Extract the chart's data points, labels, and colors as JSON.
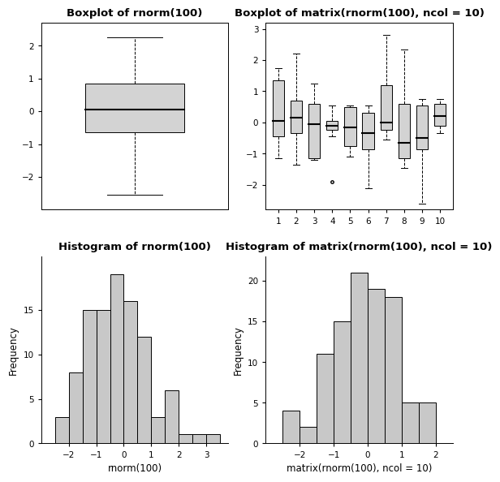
{
  "title_boxplot1": "Boxplot of rnorm(100)",
  "title_boxplot2": "Boxplot of matrix(rnorm(100), ncol = 10)",
  "title_hist1": "Histogram of rnorm(100)",
  "title_hist2": "Histogram of matrix(rnorm(100), ncol = 10)",
  "xlabel_hist1": "rnorm(100)",
  "xlabel_hist2": "matrix(rnorm(100), ncol = 10)",
  "ylabel_hist": "Frequency",
  "box1": {
    "median": 0.05,
    "q1": -0.65,
    "q3": 0.85,
    "whisker_low": -2.55,
    "whisker_high": 2.25,
    "fliers": []
  },
  "box_matrix": [
    {
      "median": 0.05,
      "q1": -0.45,
      "q3": 1.35,
      "whisker_low": -1.15,
      "whisker_high": 1.75,
      "fliers": []
    },
    {
      "median": 0.15,
      "q1": -0.35,
      "q3": 0.7,
      "whisker_low": -1.35,
      "whisker_high": 2.2,
      "fliers": []
    },
    {
      "median": -0.05,
      "q1": -1.15,
      "q3": 0.6,
      "whisker_low": -1.2,
      "whisker_high": 1.25,
      "fliers": []
    },
    {
      "median": -0.1,
      "q1": -0.25,
      "q3": 0.05,
      "whisker_low": -0.45,
      "whisker_high": 0.55,
      "fliers": [
        -1.9
      ]
    },
    {
      "median": -0.15,
      "q1": -0.75,
      "q3": 0.5,
      "whisker_low": -1.1,
      "whisker_high": 0.55,
      "fliers": []
    },
    {
      "median": -0.35,
      "q1": -0.85,
      "q3": 0.3,
      "whisker_low": -2.1,
      "whisker_high": 0.55,
      "fliers": []
    },
    {
      "median": 0.0,
      "q1": -0.25,
      "q3": 1.2,
      "whisker_low": -0.55,
      "whisker_high": 2.8,
      "fliers": []
    },
    {
      "median": -0.65,
      "q1": -1.15,
      "q3": 0.6,
      "whisker_low": -1.45,
      "whisker_high": 2.35,
      "fliers": []
    },
    {
      "median": -0.5,
      "q1": -0.85,
      "q3": 0.55,
      "whisker_low": -2.6,
      "whisker_high": 0.75,
      "fliers": []
    },
    {
      "median": 0.2,
      "q1": -0.1,
      "q3": 0.6,
      "whisker_low": -0.35,
      "whisker_high": 0.75,
      "fliers": []
    }
  ],
  "hist1_bins": [
    -2.5,
    -2.0,
    -1.5,
    -1.0,
    -0.5,
    0.0,
    0.5,
    1.0,
    1.5,
    2.0,
    2.5,
    3.0,
    3.5
  ],
  "hist1_counts": [
    3,
    8,
    15,
    15,
    19,
    16,
    12,
    3,
    6,
    1,
    1,
    1
  ],
  "hist2_bins": [
    -2.5,
    -2.0,
    -1.5,
    -1.0,
    -0.5,
    0.0,
    0.5,
    1.0,
    1.5,
    2.0
  ],
  "hist2_counts": [
    4,
    2,
    11,
    15,
    21,
    19,
    18,
    5,
    5
  ],
  "box_color": "#d3d3d3",
  "hist_color": "#c8c8c8",
  "background": "#ffffff",
  "title_fontsize": 9.5,
  "label_fontsize": 8.5,
  "tick_fontsize": 7.5
}
